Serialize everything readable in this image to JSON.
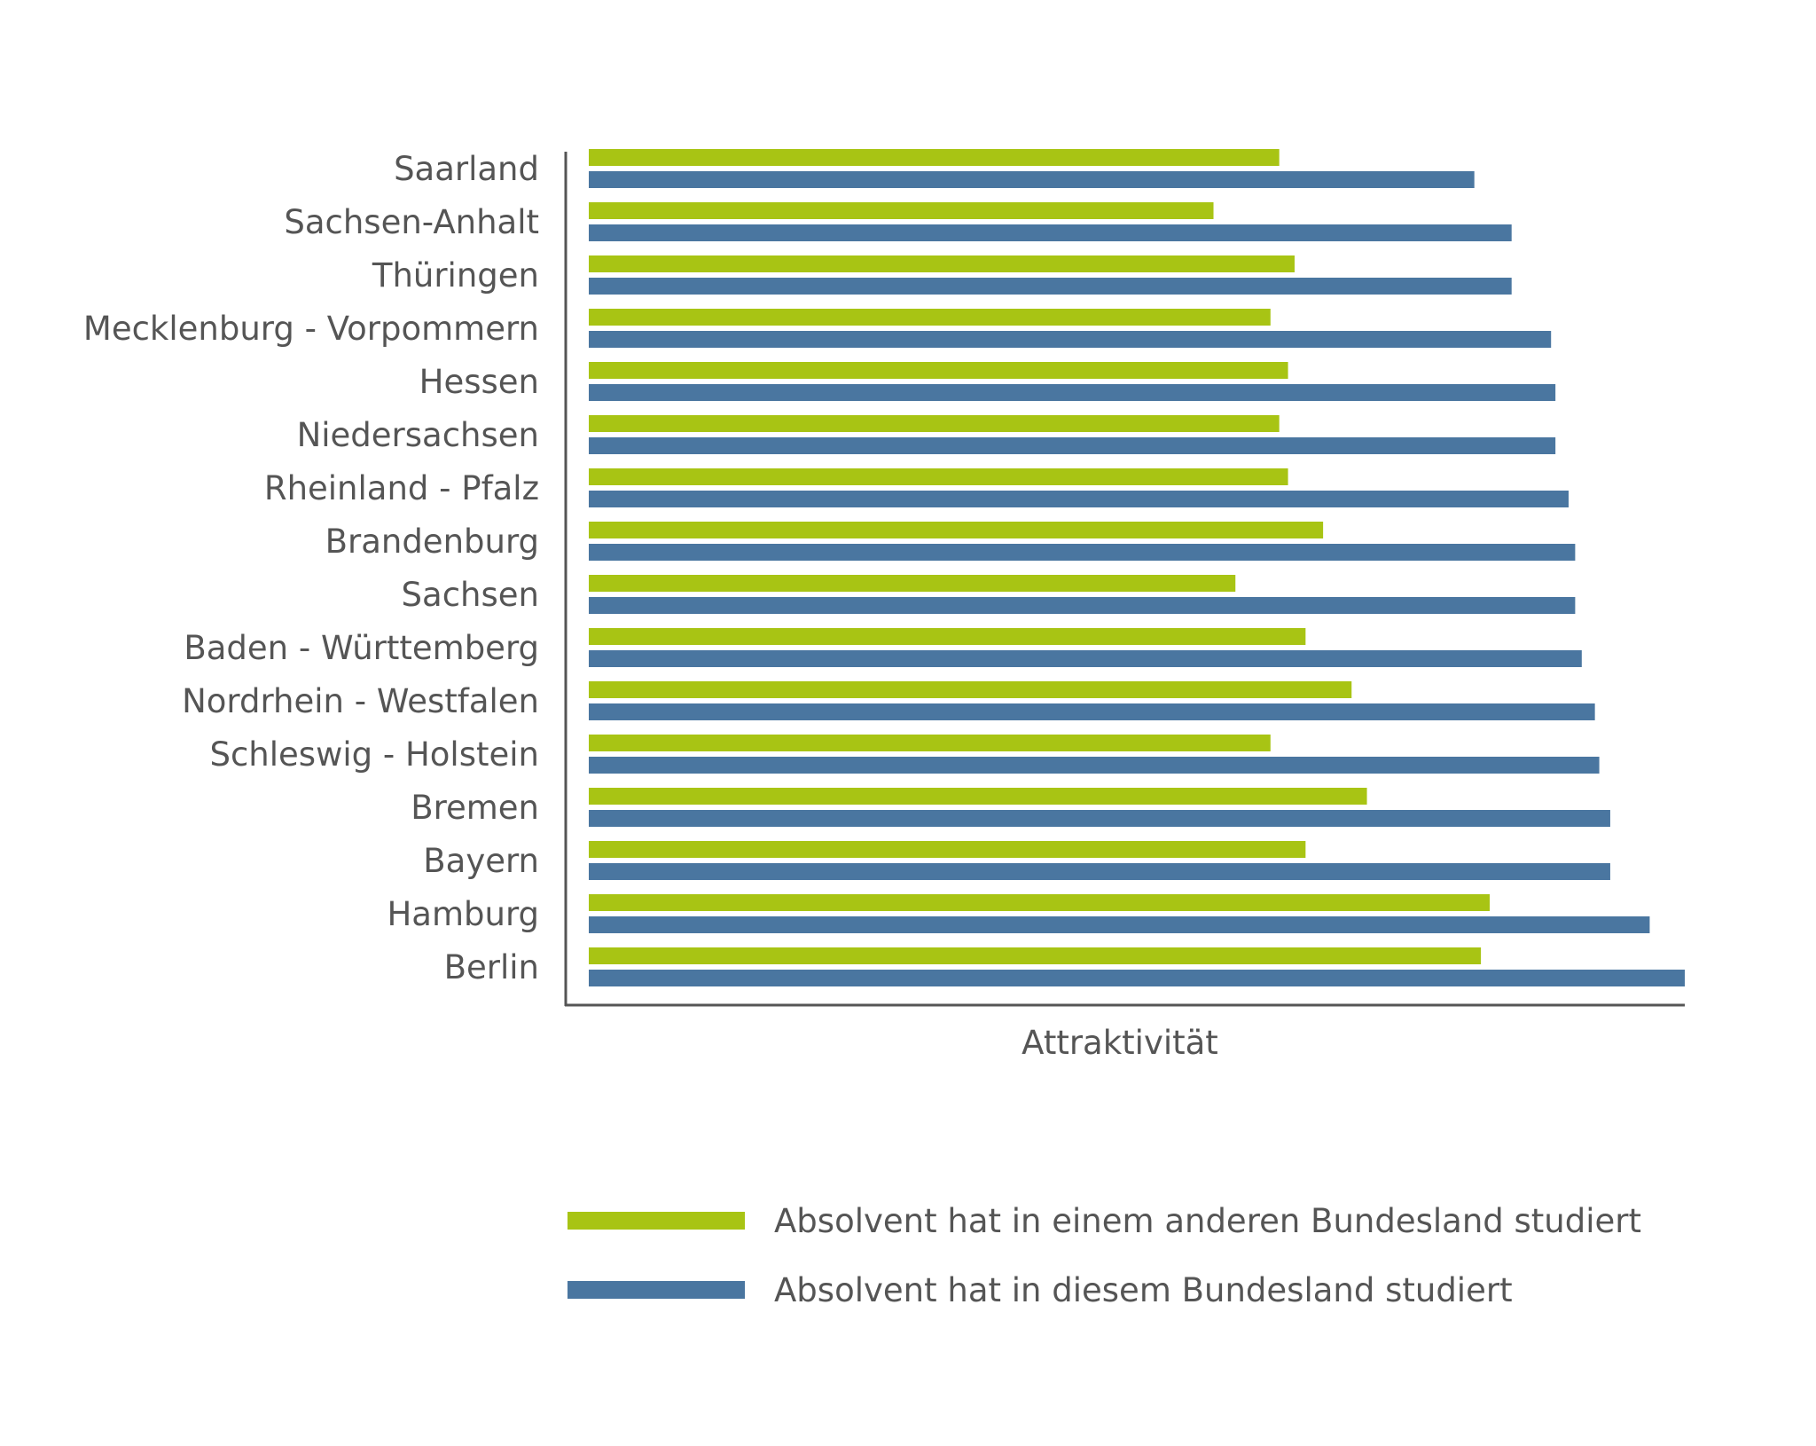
{
  "chart_data": {
    "type": "bar",
    "orientation": "horizontal",
    "xlabel": "Attraktivität",
    "ylabel": "",
    "xlim": [
      0,
      100
    ],
    "grid": false,
    "legend_position": "bottom",
    "categories": [
      "Saarland",
      "Sachsen-Anhalt",
      "Thüringen",
      "Mecklenburg - Vorpommern",
      "Hessen",
      "Niedersachsen",
      "Rheinland - Pfalz",
      "Brandenburg",
      "Sachsen",
      "Baden - Württemberg",
      "Nordrhein - Westfalen",
      "Schleswig - Holstein",
      "Bremen",
      "Bayern",
      "Hamburg",
      "Berlin"
    ],
    "series": [
      {
        "name": "Absolvent hat in einem anderen Bundesland studiert",
        "color": "#a8c414",
        "values": [
          63,
          57,
          64.4,
          62.2,
          63.8,
          63,
          63.8,
          67,
          59,
          65.4,
          69.6,
          62.2,
          71,
          65.4,
          82.2,
          81.4
        ]
      },
      {
        "name": "Absolvent hat in diesem Bundesland studiert",
        "color": "#4a76a0",
        "values": [
          80.8,
          84.2,
          84.2,
          87.8,
          88.2,
          88.2,
          89.4,
          90,
          90,
          90.6,
          91.8,
          92.2,
          93.2,
          93.2,
          96.8,
          100
        ]
      }
    ]
  }
}
